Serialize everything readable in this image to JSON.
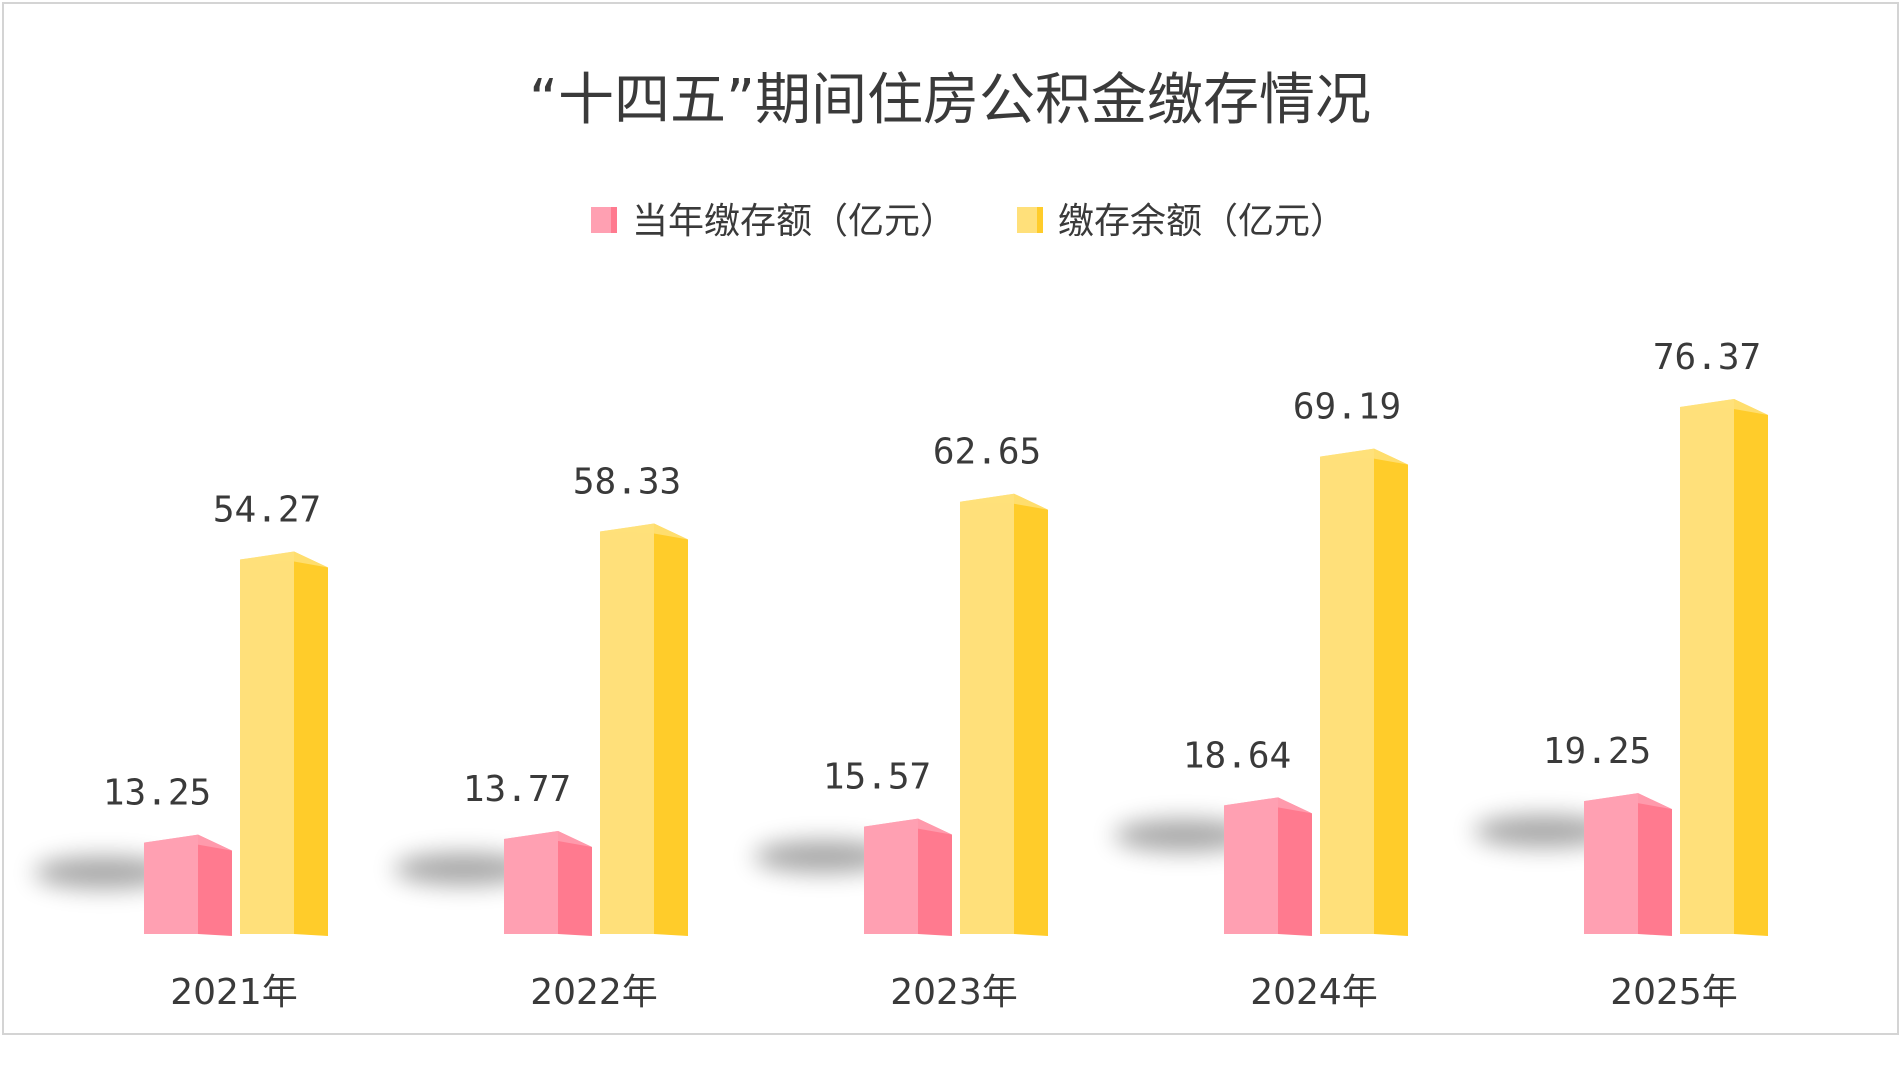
{
  "chart_data": {
    "type": "bar",
    "title": "“十四五”期间住房公积金缴存情况",
    "categories": [
      "2021年",
      "2022年",
      "2023年",
      "2024年",
      "2025年"
    ],
    "series": [
      {
        "name": "当年缴存额（亿元）",
        "values": [
          13.25,
          13.77,
          15.57,
          18.64,
          19.25
        ],
        "labels": [
          "13.25",
          "13.77",
          "15.57",
          "18.64",
          "19.25"
        ],
        "color": "#FFA0B2",
        "side_color": "#FF7A8F"
      },
      {
        "name": "缴存余额（亿元）",
        "values": [
          54.27,
          58.33,
          62.65,
          69.19,
          76.37
        ],
        "labels": [
          "54.27",
          "58.33",
          "62.65",
          "69.19",
          "76.37"
        ],
        "color": "#FFE07A",
        "side_color": "#FFCC2A"
      }
    ],
    "legend_position": "top",
    "grid": false
  }
}
